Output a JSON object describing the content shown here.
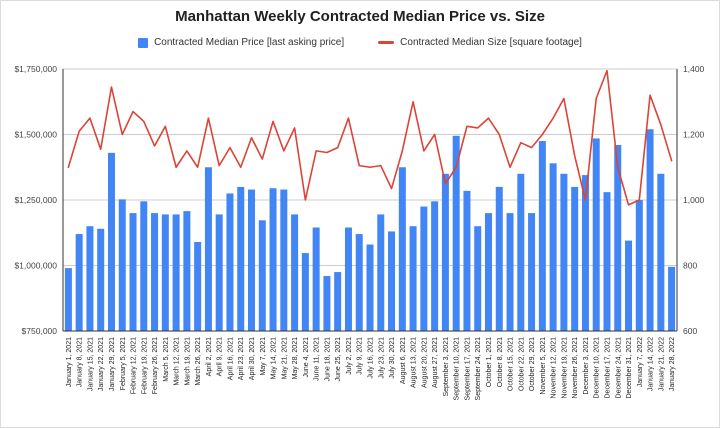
{
  "title": "Manhattan Weekly Contracted Median Price vs. Size",
  "legend": {
    "price_label": "Contracted Median Price [last asking price]",
    "size_label": "Contracted Median Size [square footage]"
  },
  "colors": {
    "bar": "#4285f4",
    "line": "#db4437",
    "grid": "#cccccc",
    "axis": "#333333",
    "tick_text": "#444444",
    "x_text": "#222222"
  },
  "chart_data": {
    "type": "combo",
    "title": "Manhattan Weekly Contracted Median Price vs. Size",
    "grid": true,
    "legend_position": "top",
    "categories": [
      "January 1, 2021",
      "January 8, 2021",
      "January 15, 2021",
      "January 22, 2021",
      "January 29, 2021",
      "February 5, 2021",
      "February 12, 2021",
      "February 19, 2021",
      "February 26, 2021",
      "March 5, 2021",
      "March 12, 2021",
      "March 19, 2021",
      "March 26, 2021",
      "April 2, 2021",
      "April 9, 2021",
      "April 16, 2021",
      "April 23, 2021",
      "April 30, 2021",
      "May 7, 2021",
      "May 14, 2021",
      "May 21, 2021",
      "May 28, 2021",
      "June 4, 2021",
      "June 11, 2021",
      "June 18, 2021",
      "June 25, 2021",
      "July 2, 2021",
      "July 9, 2021",
      "July 16, 2021",
      "July 23, 2021",
      "July 30, 2021",
      "August 6, 2021",
      "August 13, 2021",
      "August 20, 2021",
      "August 27, 2021",
      "September 3, 2021",
      "September 10, 2021",
      "September 17, 2021",
      "September 24, 2021",
      "October 1, 2021",
      "October 8, 2021",
      "October 15, 2021",
      "October 22, 2021",
      "October 29, 2021",
      "November 5, 2021",
      "November 12, 2021",
      "November 19, 2021",
      "November 26, 2021",
      "December 3, 2021",
      "December 10, 2021",
      "December 17, 2021",
      "December 24, 2021",
      "December 31, 2021",
      "January 7, 2022",
      "January 14, 2022",
      "January 21, 2022",
      "January 28, 2022"
    ],
    "series": [
      {
        "name": "Contracted Median Price [last asking price]",
        "type": "bar",
        "axis": "left",
        "color": "#4285f4",
        "values": [
          990000,
          1120000,
          1150000,
          1140000,
          1430000,
          1252500,
          1200000,
          1245000,
          1200000,
          1195000,
          1195000,
          1207500,
          1090000,
          1375000,
          1195000,
          1275000,
          1300000,
          1290000,
          1172500,
          1295000,
          1290000,
          1195000,
          1047500,
          1145000,
          960000,
          975000,
          1145000,
          1120000,
          1080000,
          1195000,
          1130000,
          1375000,
          1150000,
          1225000,
          1245000,
          1350000,
          1495000,
          1285000,
          1150000,
          1200000,
          1300000,
          1200000,
          1350000,
          1200000,
          1475000,
          1390000,
          1350000,
          1300000,
          1345000,
          1485000,
          1280000,
          1460000,
          1095000,
          1250000,
          1520000,
          1350000,
          995000
        ]
      },
      {
        "name": "Contracted Median Size [square footage]",
        "type": "line",
        "axis": "right",
        "color": "#db4437",
        "values": [
          1100,
          1210,
          1250,
          1155,
          1345,
          1200,
          1270,
          1240,
          1165,
          1225,
          1100,
          1150,
          1100,
          1250,
          1105,
          1160,
          1100,
          1190,
          1125,
          1240,
          1150,
          1220,
          1000,
          1150,
          1145,
          1160,
          1250,
          1105,
          1100,
          1105,
          1035,
          1150,
          1300,
          1150,
          1200,
          1050,
          1100,
          1225,
          1220,
          1250,
          1200,
          1100,
          1175,
          1160,
          1200,
          1250,
          1310,
          1135,
          1000,
          1310,
          1395,
          1100,
          985,
          1000,
          1320,
          1230,
          1120
        ]
      }
    ],
    "left_axis": {
      "min": 750000,
      "max": 1750000,
      "ticks": [
        {
          "v": 750000,
          "label": "$750,000"
        },
        {
          "v": 1000000,
          "label": "$1,000,000"
        },
        {
          "v": 1250000,
          "label": "$1,250,000"
        },
        {
          "v": 1500000,
          "label": "$1,500,000"
        },
        {
          "v": 1750000,
          "label": "$1,750,000"
        }
      ]
    },
    "right_axis": {
      "min": 600,
      "max": 1400,
      "ticks": [
        {
          "v": 600,
          "label": "600"
        },
        {
          "v": 800,
          "label": "800"
        },
        {
          "v": 1000,
          "label": "1,000"
        },
        {
          "v": 1200,
          "label": "1,200"
        },
        {
          "v": 1400,
          "label": "1,400"
        }
      ]
    }
  }
}
